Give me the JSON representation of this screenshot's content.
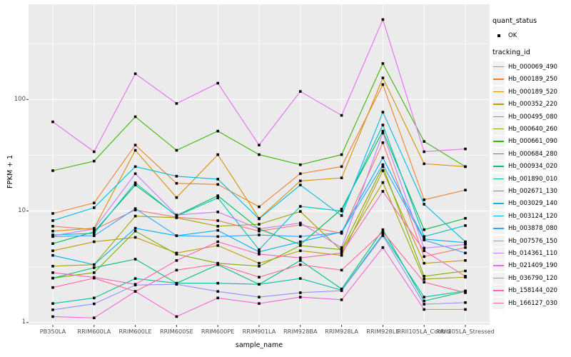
{
  "chart_data": {
    "type": "line",
    "xlabel": "sample_name",
    "ylabel": "FPKM + 1",
    "y_scale": "log10",
    "y_ticks": [
      1,
      10,
      100
    ],
    "y_minor_ticks": [
      3.162,
      31.62,
      316.2
    ],
    "ylim": [
      0.95,
      700
    ],
    "grid": "on-ggplot-grey",
    "legend_position": "right",
    "marker": "black-square",
    "colors": {
      "panel_bg": "#EBEBEB",
      "gridline": "#FFFFFF",
      "marker": "#000000",
      "legend_key_bg": "#F2F2F2",
      "axis_text": "#4D4D4D"
    },
    "legend": {
      "quant_status_title": "quant_status",
      "quant_status_items": [
        {
          "label": "OK",
          "marker": "black-square"
        }
      ],
      "tracking_id_title": "tracking_id"
    },
    "categories": [
      "PB350LA",
      "RRIM600LA",
      "RRIM600LE",
      "RRIM600SE",
      "RRIM600PE",
      "RRIM901LA",
      "RRIM928BA",
      "RRIM928LA",
      "RRIM928LE",
      "RRII105LA_Control",
      "RRII105LA_Stressed"
    ],
    "series": [
      {
        "name": "Hb_000069_490",
        "color": "#F8766D",
        "values": [
          7.3,
          6.8,
          10.2,
          8.8,
          8.2,
          6.6,
          7.5,
          6.3,
          41,
          3.9,
          4.7
        ]
      },
      {
        "name": "Hb_000189_250",
        "color": "#EA8331",
        "values": [
          9.5,
          11.8,
          39,
          17.7,
          17.3,
          10.9,
          21.6,
          25,
          136,
          12.6,
          15.4
        ]
      },
      {
        "name": "Hb_000189_520",
        "color": "#D89000",
        "values": [
          6.6,
          7.0,
          35,
          13.2,
          32,
          8.6,
          18.6,
          19.8,
          156,
          26.5,
          25
        ]
      },
      {
        "name": "Hb_000352_220",
        "color": "#C09B00",
        "values": [
          4.4,
          5.3,
          5.8,
          4.2,
          4.9,
          3.4,
          4.4,
          4.0,
          23,
          3.4,
          3.6
        ]
      },
      {
        "name": "Hb_000495_080",
        "color": "#A3A500",
        "values": [
          3.2,
          3.3,
          9.0,
          8.7,
          7.3,
          7.6,
          9.9,
          4.4,
          18,
          2.45,
          2.55
        ]
      },
      {
        "name": "Hb_000640_260",
        "color": "#7CAE00",
        "values": [
          2.5,
          2.8,
          6.6,
          4.1,
          3.4,
          3.2,
          4.9,
          4.5,
          25,
          2.6,
          2.9
        ]
      },
      {
        "name": "Hb_000661_090",
        "color": "#39B600",
        "values": [
          23,
          28,
          70,
          35,
          52,
          32,
          26,
          32,
          210,
          42,
          25
        ]
      },
      {
        "name": "Hb_000684_280",
        "color": "#00BB4E",
        "values": [
          5.1,
          6.5,
          17.1,
          9.1,
          13.7,
          6.9,
          5.0,
          10.4,
          52,
          6.8,
          8.6
        ]
      },
      {
        "name": "Hb_000934_020",
        "color": "#00BF7D",
        "values": [
          2.5,
          3.1,
          3.7,
          2.25,
          3.3,
          2.2,
          3.6,
          2.0,
          6.8,
          1.56,
          1.9
        ]
      },
      {
        "name": "Hb_001890_010",
        "color": "#00C1A3",
        "values": [
          1.48,
          1.66,
          2.48,
          2.25,
          2.25,
          2.2,
          2.48,
          1.95,
          6.2,
          1.69,
          1.92
        ]
      },
      {
        "name": "Hb_002671_130",
        "color": "#00BFC4",
        "values": [
          6.1,
          6.3,
          17.9,
          9.0,
          13.1,
          4.5,
          11.0,
          10.0,
          59,
          5.9,
          7.4
        ]
      },
      {
        "name": "Hb_003029_140",
        "color": "#00BAE0",
        "values": [
          8.2,
          10.7,
          25,
          20.5,
          19.3,
          8.5,
          17.1,
          9.1,
          77,
          11.5,
          5.3
        ]
      },
      {
        "name": "Hb_003124_120",
        "color": "#00B0F6",
        "values": [
          4.0,
          3.3,
          7.0,
          6.0,
          6.7,
          4.3,
          5.3,
          6.5,
          30,
          5.6,
          5.2
        ]
      },
      {
        "name": "Hb_003878_080",
        "color": "#35A2FF",
        "values": [
          5.9,
          6.0,
          10.5,
          6.0,
          5.9,
          6.1,
          5.9,
          6.4,
          26,
          5.5,
          4.2
        ]
      },
      {
        "name": "Hb_007576_150",
        "color": "#9590FF",
        "values": [
          1.3,
          1.47,
          2.17,
          2.2,
          1.9,
          1.69,
          1.85,
          1.93,
          6.0,
          1.46,
          1.51
        ]
      },
      {
        "name": "Hb_014361_110",
        "color": "#C77CFF",
        "values": [
          6.0,
          6.9,
          21.6,
          9.2,
          9.8,
          6.9,
          7.8,
          4.7,
          50,
          4.65,
          5.0
        ]
      },
      {
        "name": "Hb_021409_190",
        "color": "#E76BF3",
        "values": [
          63,
          34,
          170,
          92,
          140,
          39,
          118,
          72,
          520,
          34,
          36
        ]
      },
      {
        "name": "Hb_036790_120",
        "color": "#FA62DB",
        "values": [
          1.13,
          1.1,
          1.9,
          1.13,
          1.66,
          1.48,
          1.69,
          1.6,
          4.7,
          1.31,
          1.31
        ]
      },
      {
        "name": "Hb_158144_020",
        "color": "#FF62BC",
        "values": [
          2.8,
          2.54,
          2.2,
          3.6,
          5.3,
          4.1,
          3.8,
          4.2,
          15,
          4.4,
          2.6
        ]
      },
      {
        "name": "Hb_166127_030",
        "color": "#FF6A98",
        "values": [
          2.06,
          2.5,
          1.9,
          2.95,
          3.35,
          2.55,
          3.3,
          2.95,
          6.5,
          2.3,
          1.85
        ]
      }
    ]
  }
}
